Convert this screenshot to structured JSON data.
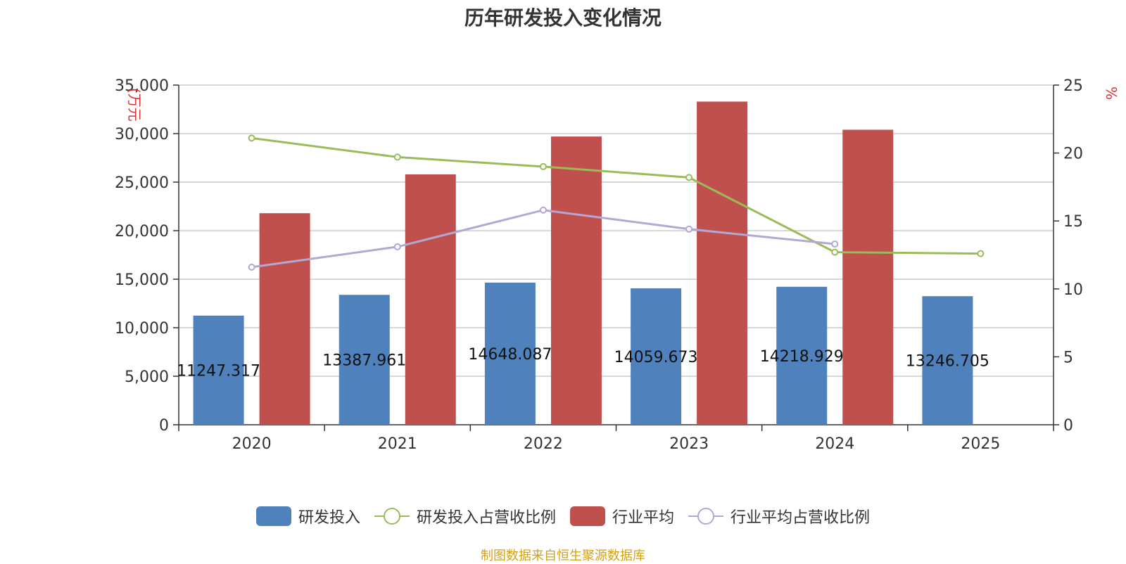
{
  "chart_data": {
    "type": "bar",
    "title": "历年研发投入变化情况",
    "categories": [
      "2020",
      "2021",
      "2022",
      "2023",
      "2024",
      "2025"
    ],
    "left_axis": {
      "label": "(万元",
      "ylim": [
        0,
        35000
      ],
      "ticks": [
        "0",
        "5,000",
        "10,000",
        "15,000",
        "20,000",
        "25,000",
        "30,000",
        "35,000"
      ]
    },
    "right_axis": {
      "label": "%",
      "ylim": [
        0,
        25
      ],
      "ticks": [
        "0",
        "5",
        "10",
        "15",
        "20",
        "25"
      ]
    },
    "grid": true,
    "legend_placement": "bottom",
    "series": [
      {
        "name": "研发投入",
        "type": "bar",
        "axis": "left",
        "color": "#4f81bd",
        "values": [
          11247.317,
          13387.961,
          14648.087,
          14059.673,
          14218.929,
          13246.705
        ],
        "data_labels": [
          "11247.317",
          "13387.961",
          "14648.087",
          "14059.673",
          "14218.929",
          "13246.705"
        ]
      },
      {
        "name": "研发投入占营收比例",
        "type": "line",
        "axis": "right",
        "color": "#9bbb59",
        "values": [
          21.1,
          19.7,
          19.0,
          18.2,
          12.7,
          12.6
        ]
      },
      {
        "name": "行业平均",
        "type": "bar",
        "axis": "left",
        "color": "#c0504d",
        "values": [
          21800,
          25800,
          29700,
          33300,
          30400,
          null
        ]
      },
      {
        "name": "行业平均占营收比例",
        "type": "line",
        "axis": "right",
        "color": "#b3a7d3",
        "values": [
          11.6,
          13.1,
          15.8,
          14.4,
          13.3,
          null
        ]
      }
    ]
  },
  "source": "制图数据来自恒生聚源数据库"
}
